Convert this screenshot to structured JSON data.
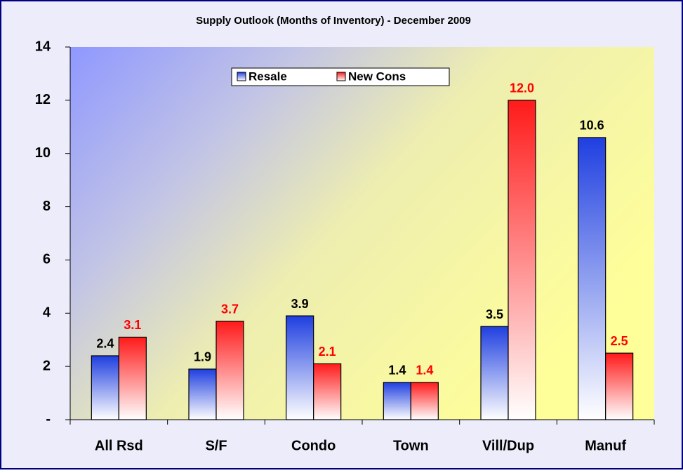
{
  "chart_data": {
    "type": "bar",
    "title": "Supply Outlook (Months of Inventory) - December  2009",
    "categories": [
      "All Rsd",
      "S/F",
      "Condo",
      "Town",
      "Vill/Dup",
      "Manuf"
    ],
    "series": [
      {
        "name": "Resale",
        "color": "#1f3fe0",
        "values": [
          2.4,
          1.9,
          3.9,
          1.4,
          3.5,
          10.6
        ],
        "value_labels": [
          "2.4",
          "1.9",
          "3.9",
          "1.4",
          "3.5",
          "10.6"
        ],
        "label_color": "#000000"
      },
      {
        "name": "New Cons",
        "color": "#ff1a1a",
        "values": [
          3.1,
          3.7,
          2.1,
          1.4,
          12.0,
          2.5
        ],
        "value_labels": [
          "3.1",
          "3.7",
          "2.1",
          "1.4",
          "12.0",
          "2.5"
        ],
        "label_color": "#ff0000"
      }
    ],
    "ylim": [
      0,
      14
    ],
    "yticks": [
      {
        "value": 0,
        "label": "-"
      },
      2,
      4,
      6,
      8,
      10,
      12,
      14
    ]
  }
}
